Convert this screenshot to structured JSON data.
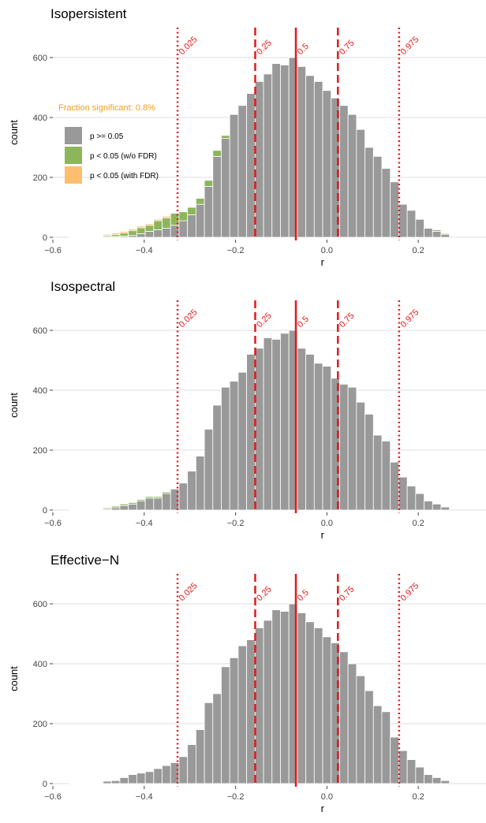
{
  "colors": {
    "gray": "#999999",
    "green": "#8db65a",
    "orange": "#fdbf6f",
    "red": "#e31a1c",
    "annotation": "#f0a020",
    "grid": "#dcdcdc"
  },
  "chart_data": [
    {
      "type": "bar",
      "title": "Isopersistent",
      "xlabel": "r",
      "ylabel": "count",
      "xlim": [
        -0.6,
        0.35
      ],
      "ylim": [
        0,
        700
      ],
      "xticks": [
        -0.6,
        -0.4,
        -0.2,
        0.0,
        0.2
      ],
      "xtick_labels": [
        "−0.6",
        "−0.4",
        "−0.2",
        "0.0",
        "0.2"
      ],
      "yticks": [
        0,
        200,
        400,
        600
      ],
      "bin_width": 0.0185,
      "x": [
        -0.555,
        -0.5365,
        -0.518,
        -0.4995,
        -0.481,
        -0.4625,
        -0.444,
        -0.4255,
        -0.407,
        -0.3885,
        -0.37,
        -0.3515,
        -0.333,
        -0.3145,
        -0.296,
        -0.2775,
        -0.259,
        -0.2405,
        -0.222,
        -0.2035,
        -0.185,
        -0.1665,
        -0.148,
        -0.1295,
        -0.111,
        -0.0925,
        -0.074,
        -0.0555,
        -0.037,
        -0.0185,
        0.0,
        0.0185,
        0.037,
        0.0555,
        0.074,
        0.0925,
        0.111,
        0.1295,
        0.148,
        0.1665,
        0.185,
        0.2035,
        0.222,
        0.2405,
        0.259
      ],
      "series": [
        {
          "name": "p >= 0.05",
          "values": [
            2,
            2,
            2,
            2,
            3,
            3,
            4,
            6,
            12,
            20,
            25,
            30,
            40,
            55,
            75,
            110,
            170,
            270,
            330,
            410,
            440,
            480,
            520,
            545,
            580,
            575,
            600,
            570,
            540,
            520,
            490,
            465,
            440,
            410,
            360,
            300,
            270,
            230,
            185,
            110,
            90,
            60,
            30,
            20,
            10
          ]
        },
        {
          "name": "p < 0.05 (w/o FDR)",
          "values": [
            0,
            0,
            0,
            0,
            4,
            6,
            10,
            16,
            20,
            20,
            30,
            35,
            40,
            30,
            25,
            20,
            20,
            20,
            10,
            0,
            0,
            0,
            0,
            0,
            0,
            0,
            0,
            0,
            0,
            0,
            0,
            0,
            0,
            0,
            0,
            0,
            0,
            0,
            0,
            0,
            0,
            0,
            0,
            5,
            3
          ]
        },
        {
          "name": "p < 0.05 (with FDR)",
          "values": [
            0,
            0,
            0,
            0,
            3,
            5,
            5,
            5,
            5,
            5,
            5,
            5,
            0,
            0,
            0,
            0,
            0,
            0,
            0,
            0,
            0,
            0,
            0,
            0,
            0,
            0,
            0,
            0,
            0,
            0,
            0,
            0,
            0,
            0,
            0,
            0,
            0,
            0,
            0,
            0,
            0,
            0,
            0,
            0,
            0
          ]
        }
      ],
      "quantiles": [
        {
          "label": "0.025",
          "value": -0.327,
          "style": "dotted"
        },
        {
          "label": "0.25",
          "value": -0.157,
          "style": "dashed"
        },
        {
          "label": "0.5",
          "value": -0.068,
          "style": "solid"
        },
        {
          "label": "0.75",
          "value": 0.024,
          "style": "dashed"
        },
        {
          "label": "0.975",
          "value": 0.158,
          "style": "dotted"
        }
      ],
      "annotation": "Fraction significant: 0.8%",
      "legend": [
        {
          "label": "p >= 0.05",
          "color": "#999999"
        },
        {
          "label": "p < 0.05 (w/o FDR)",
          "color": "#8db65a"
        },
        {
          "label": "p < 0.05 (with FDR)",
          "color": "#fdbf6f"
        }
      ],
      "legend_position": "left",
      "grid": true
    },
    {
      "type": "bar",
      "title": "Isospectral",
      "xlabel": "r",
      "ylabel": "count",
      "xlim": [
        -0.6,
        0.35
      ],
      "ylim": [
        0,
        700
      ],
      "xticks": [
        -0.6,
        -0.4,
        -0.2,
        0.0,
        0.2
      ],
      "xtick_labels": [
        "−0.6",
        "−0.4",
        "−0.2",
        "0.0",
        "0.2"
      ],
      "yticks": [
        0,
        200,
        400,
        600
      ],
      "bin_width": 0.0185,
      "x": [
        -0.555,
        -0.5365,
        -0.518,
        -0.4995,
        -0.481,
        -0.4625,
        -0.444,
        -0.4255,
        -0.407,
        -0.3885,
        -0.37,
        -0.3515,
        -0.333,
        -0.3145,
        -0.296,
        -0.2775,
        -0.259,
        -0.2405,
        -0.222,
        -0.2035,
        -0.185,
        -0.1665,
        -0.148,
        -0.1295,
        -0.111,
        -0.0925,
        -0.074,
        -0.0555,
        -0.037,
        -0.0185,
        0.0,
        0.0185,
        0.037,
        0.0555,
        0.074,
        0.0925,
        0.111,
        0.1295,
        0.148,
        0.1665,
        0.185,
        0.2035,
        0.222,
        0.2405,
        0.259
      ],
      "series": [
        {
          "name": "p >= 0.05",
          "values": [
            2,
            2,
            2,
            2,
            3,
            8,
            15,
            20,
            30,
            40,
            40,
            55,
            70,
            90,
            130,
            180,
            270,
            350,
            410,
            430,
            460,
            520,
            540,
            575,
            570,
            590,
            600,
            540,
            520,
            490,
            480,
            440,
            420,
            410,
            360,
            320,
            250,
            230,
            160,
            110,
            80,
            55,
            30,
            20,
            10
          ]
        },
        {
          "name": "p < 0.05 (w/o FDR)",
          "values": [
            0,
            0,
            0,
            0,
            4,
            5,
            5,
            5,
            5,
            5,
            5,
            5,
            0,
            0,
            0,
            0,
            0,
            0,
            0,
            0,
            0,
            0,
            0,
            0,
            0,
            0,
            0,
            0,
            0,
            0,
            0,
            0,
            0,
            0,
            0,
            0,
            0,
            0,
            0,
            0,
            0,
            0,
            0,
            0,
            0
          ]
        },
        {
          "name": "p < 0.05 (with FDR)",
          "values": [
            0,
            0,
            0,
            0,
            0,
            0,
            0,
            0,
            0,
            0,
            0,
            0,
            0,
            0,
            0,
            0,
            0,
            0,
            0,
            0,
            0,
            0,
            0,
            0,
            0,
            0,
            0,
            0,
            0,
            0,
            0,
            0,
            0,
            0,
            0,
            0,
            0,
            0,
            0,
            0,
            0,
            0,
            0,
            0,
            0
          ]
        }
      ],
      "quantiles": [
        {
          "label": "0.025",
          "value": -0.327,
          "style": "dotted"
        },
        {
          "label": "0.25",
          "value": -0.157,
          "style": "dashed"
        },
        {
          "label": "0.5",
          "value": -0.068,
          "style": "solid"
        },
        {
          "label": "0.75",
          "value": 0.024,
          "style": "dashed"
        },
        {
          "label": "0.975",
          "value": 0.158,
          "style": "dotted"
        }
      ],
      "grid": true
    },
    {
      "type": "bar",
      "title": "Effective−N",
      "xlabel": "r",
      "ylabel": "count",
      "xlim": [
        -0.6,
        0.35
      ],
      "ylim": [
        0,
        700
      ],
      "xticks": [
        -0.6,
        -0.4,
        -0.2,
        0.0,
        0.2
      ],
      "xtick_labels": [
        "−0.6",
        "−0.4",
        "−0.2",
        "0.0",
        "0.2"
      ],
      "yticks": [
        0,
        200,
        400,
        600
      ],
      "bin_width": 0.0185,
      "x": [
        -0.555,
        -0.5365,
        -0.518,
        -0.4995,
        -0.481,
        -0.4625,
        -0.444,
        -0.4255,
        -0.407,
        -0.3885,
        -0.37,
        -0.3515,
        -0.333,
        -0.3145,
        -0.296,
        -0.2775,
        -0.259,
        -0.2405,
        -0.222,
        -0.2035,
        -0.185,
        -0.1665,
        -0.148,
        -0.1295,
        -0.111,
        -0.0925,
        -0.074,
        -0.0555,
        -0.037,
        -0.0185,
        0.0,
        0.0185,
        0.037,
        0.0555,
        0.074,
        0.0925,
        0.111,
        0.1295,
        0.148,
        0.1665,
        0.185,
        0.2035,
        0.222,
        0.2405,
        0.259
      ],
      "series": [
        {
          "name": "p >= 0.05",
          "values": [
            2,
            2,
            2,
            2,
            8,
            10,
            20,
            30,
            35,
            40,
            50,
            60,
            70,
            90,
            130,
            180,
            270,
            300,
            390,
            420,
            460,
            480,
            520,
            545,
            580,
            575,
            600,
            570,
            540,
            520,
            490,
            470,
            440,
            400,
            360,
            310,
            260,
            240,
            155,
            110,
            80,
            55,
            30,
            20,
            10
          ]
        },
        {
          "name": "p < 0.05 (w/o FDR)",
          "values": [
            0,
            0,
            0,
            0,
            0,
            0,
            0,
            0,
            0,
            0,
            0,
            0,
            0,
            0,
            0,
            0,
            0,
            0,
            0,
            0,
            0,
            0,
            0,
            0,
            0,
            0,
            0,
            0,
            0,
            0,
            0,
            0,
            0,
            0,
            0,
            0,
            0,
            0,
            0,
            0,
            0,
            0,
            0,
            0,
            0
          ]
        },
        {
          "name": "p < 0.05 (with FDR)",
          "values": [
            0,
            0,
            0,
            0,
            0,
            0,
            0,
            0,
            0,
            0,
            0,
            0,
            0,
            0,
            0,
            0,
            0,
            0,
            0,
            0,
            0,
            0,
            0,
            0,
            0,
            0,
            0,
            0,
            0,
            0,
            0,
            0,
            0,
            0,
            0,
            0,
            0,
            0,
            0,
            0,
            0,
            0,
            0,
            0,
            0
          ]
        }
      ],
      "quantiles": [
        {
          "label": "0.025",
          "value": -0.327,
          "style": "dotted"
        },
        {
          "label": "0.25",
          "value": -0.157,
          "style": "dashed"
        },
        {
          "label": "0.5",
          "value": -0.068,
          "style": "solid"
        },
        {
          "label": "0.75",
          "value": 0.024,
          "style": "dashed"
        },
        {
          "label": "0.975",
          "value": 0.158,
          "style": "dotted"
        }
      ],
      "grid": true
    }
  ]
}
